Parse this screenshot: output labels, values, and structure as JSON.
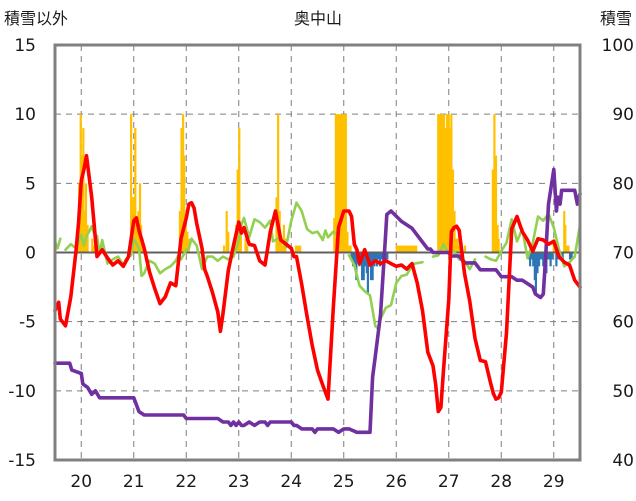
{
  "chart_data": {
    "type": "line",
    "title": "奥中山",
    "ylabel_left": "積雪以外",
    "ylabel_right": "積雪",
    "xlim": [
      19.5,
      29.5
    ],
    "ylim_left": [
      -15,
      15
    ],
    "ylim_right": [
      40,
      100
    ],
    "x_ticks": [
      "20",
      "21",
      "22",
      "23",
      "24",
      "25",
      "26",
      "27",
      "28",
      "29"
    ],
    "y_ticks_left": [
      "15",
      "10",
      "5",
      "0",
      "-5",
      "-10",
      "-15"
    ],
    "y_ticks_right": [
      "100",
      "90",
      "80",
      "70",
      "60",
      "50",
      "40"
    ],
    "grid": true,
    "colors": {
      "temperature": "#ff0000",
      "snow_depth": "#7030a0",
      "green_series": "#92d050",
      "precip_positive": "#ffc000",
      "precip_negative": "#2e75b6",
      "frame": "#808080",
      "zero_line": "#606060"
    },
    "series": [
      {
        "key": "temperature",
        "axis": "left",
        "x": [
          19.5,
          19.57,
          19.6,
          19.7,
          19.8,
          19.9,
          19.95,
          20.0,
          20.05,
          20.1,
          20.2,
          20.3,
          20.4,
          20.5,
          20.6,
          20.7,
          20.8,
          20.9,
          21.0,
          21.05,
          21.1,
          21.2,
          21.3,
          21.4,
          21.5,
          21.6,
          21.7,
          21.8,
          21.9,
          22.0,
          22.05,
          22.1,
          22.15,
          22.2,
          22.3,
          22.35,
          22.4,
          22.5,
          22.6,
          22.65,
          22.7,
          22.8,
          22.9,
          23.0,
          23.05,
          23.1,
          23.2,
          23.3,
          23.4,
          23.5,
          23.6,
          23.7,
          23.8,
          23.9,
          24.0,
          24.05,
          24.1,
          24.2,
          24.3,
          24.4,
          24.5,
          24.6,
          24.7,
          24.8,
          24.9,
          25.0,
          25.05,
          25.1,
          25.15,
          25.2,
          25.25,
          25.3,
          25.35,
          25.4,
          25.5,
          25.6,
          25.7,
          25.8,
          25.9,
          26.0,
          26.1,
          26.2,
          26.3,
          26.4,
          26.5,
          26.6,
          26.7,
          26.75,
          26.8,
          26.85,
          26.9,
          27.0,
          27.05,
          27.1,
          27.15,
          27.2,
          27.3,
          27.4,
          27.5,
          27.6,
          27.7,
          27.8,
          27.85,
          27.9,
          27.95,
          28.0,
          28.1,
          28.2,
          28.3,
          28.4,
          28.5,
          28.6,
          28.7,
          28.8,
          28.9,
          29.0,
          29.1,
          29.2,
          29.3,
          29.4,
          29.5
        ],
        "y": [
          -4.2,
          -3.6,
          -4.8,
          -5.3,
          -3.2,
          0.1,
          2.2,
          5.2,
          6.0,
          7.0,
          4.0,
          -0.3,
          0.2,
          -0.4,
          -0.9,
          -0.6,
          -1.0,
          -0.3,
          2.3,
          2.5,
          1.6,
          0.3,
          -1.4,
          -2.6,
          -3.7,
          -3.2,
          -2.2,
          -2.4,
          1.0,
          2.5,
          3.5,
          3.6,
          3.2,
          2.1,
          0.3,
          -1.2,
          -1.7,
          -2.9,
          -4.3,
          -5.7,
          -4.4,
          -1.3,
          0.5,
          2.2,
          1.4,
          1.8,
          0.6,
          0.5,
          -0.6,
          -0.9,
          1.5,
          3.0,
          0.9,
          0.6,
          0.3,
          -0.3,
          -0.3,
          -2.3,
          -4.6,
          -6.7,
          -8.5,
          -9.6,
          -10.6,
          -4.0,
          1.8,
          3.0,
          3.0,
          3.0,
          2.6,
          0.6,
          0.2,
          -0.8,
          -0.3,
          0.2,
          -0.9,
          -0.6,
          -0.8,
          -0.6,
          -0.8,
          -1.0,
          -0.9,
          -1.2,
          -0.8,
          -2.2,
          -4.2,
          -7.2,
          -8.2,
          -9.5,
          -11.5,
          -11.2,
          -8.5,
          -3.4,
          1.5,
          1.8,
          1.9,
          1.6,
          -1.5,
          -3.5,
          -6.2,
          -7.8,
          -7.9,
          -9.5,
          -10.2,
          -10.6,
          -10.5,
          -10.1,
          -5.8,
          1.7,
          2.6,
          1.5,
          0.9,
          0.1,
          1.0,
          0.9,
          0.6,
          0.8,
          -0.3,
          -0.7,
          -0.9,
          -2.0,
          -2.5
        ]
      },
      {
        "key": "snow_depth",
        "axis": "right",
        "x": [
          19.5,
          19.78,
          19.82,
          20.0,
          20.03,
          20.12,
          20.2,
          20.27,
          20.35,
          20.5,
          21.0,
          21.05,
          21.1,
          21.2,
          21.5,
          21.95,
          22.0,
          22.05,
          22.6,
          22.7,
          22.8,
          22.85,
          22.9,
          22.95,
          23.0,
          23.05,
          23.1,
          23.2,
          23.3,
          23.4,
          23.5,
          23.55,
          23.6,
          24.0,
          24.05,
          24.1,
          24.2,
          24.4,
          24.45,
          24.5,
          24.8,
          24.9,
          25.0,
          25.1,
          25.25,
          25.3,
          25.4,
          25.5,
          25.55,
          25.6,
          25.7,
          25.8,
          25.82,
          25.9,
          26.1,
          26.3,
          26.5,
          26.6,
          26.65,
          26.7,
          27.0,
          27.05,
          27.2,
          27.3,
          27.5,
          27.6,
          27.9,
          28.0,
          28.2,
          28.3,
          28.4,
          28.5,
          28.6,
          28.65,
          28.75,
          28.8,
          28.85,
          28.9,
          29.0,
          29.05,
          29.08,
          29.12,
          29.15,
          29.2,
          29.3,
          29.4,
          29.45,
          29.5
        ],
        "y": [
          54.0,
          54.0,
          53.0,
          52.5,
          51.0,
          50.5,
          49.5,
          50.0,
          49.0,
          49.0,
          49.0,
          48.0,
          47.0,
          46.5,
          46.5,
          46.5,
          46.0,
          46.0,
          46.0,
          45.5,
          45.5,
          45.0,
          45.5,
          45.0,
          45.5,
          45.0,
          45.0,
          45.5,
          45.0,
          45.5,
          45.5,
          45.0,
          45.5,
          45.5,
          45.0,
          45.0,
          44.5,
          44.5,
          44.0,
          44.5,
          44.5,
          44.0,
          44.5,
          44.5,
          44.0,
          44.0,
          44.0,
          44.0,
          52.0,
          55.0,
          61.0,
          73.0,
          75.5,
          76.0,
          74.5,
          73.5,
          71.5,
          70.5,
          70.5,
          70.0,
          70.0,
          69.5,
          69.5,
          68.5,
          68.5,
          67.5,
          67.5,
          66.5,
          66.5,
          66.0,
          66.0,
          65.5,
          65.0,
          64.0,
          63.5,
          64.0,
          70.0,
          77.0,
          82.0,
          76.0,
          78.0,
          77.0,
          79.0,
          79.0,
          79.0,
          79.0,
          77.0,
          78.5
        ]
      },
      {
        "key": "green_series",
        "axis": "left",
        "x": [
          19.5,
          19.55,
          19.6,
          19.65,
          19.7,
          19.8,
          19.9,
          20.0,
          20.05,
          20.1,
          20.15,
          20.2,
          20.25,
          20.3,
          20.35,
          20.4,
          20.5,
          20.6,
          20.7,
          20.8,
          20.85,
          20.9,
          20.95,
          21.0,
          21.1,
          21.15,
          21.2,
          21.3,
          21.4,
          21.5,
          21.6,
          21.7,
          21.8,
          21.85,
          21.9,
          22.0,
          22.05,
          22.1,
          22.2,
          22.3,
          22.4,
          22.5,
          22.6,
          22.7,
          22.8,
          22.9,
          23.0,
          23.05,
          23.1,
          23.2,
          23.3,
          23.4,
          23.5,
          23.6,
          23.65,
          23.7,
          23.8,
          23.9,
          24.0,
          24.1,
          24.2,
          24.3,
          24.4,
          24.5,
          24.6,
          24.65,
          24.7,
          24.8,
          24.9,
          25.0,
          25.1,
          25.2,
          25.3,
          25.4,
          25.5,
          25.6,
          25.65,
          25.7,
          25.8,
          25.9,
          26.0,
          26.1,
          26.2,
          26.3,
          26.35,
          26.5,
          26.6,
          26.7,
          26.8,
          26.9,
          27.0,
          27.1,
          27.2,
          27.3,
          27.4,
          27.5,
          27.6,
          27.7,
          27.8,
          27.9,
          28.0,
          28.1,
          28.2,
          28.3,
          28.4,
          28.5,
          28.6,
          28.7,
          28.8,
          28.9,
          29.0,
          29.1,
          29.2,
          29.3,
          29.4,
          29.5
        ],
        "y": [
          0.8,
          0.3,
          1.0,
          null,
          0.2,
          0.6,
          0.3,
          1.3,
          0.5,
          1.2,
          1.5,
          1.9,
          1.3,
          1.2,
          -0.1,
          0.9,
          -0.8,
          -0.5,
          -0.3,
          -0.9,
          -0.5,
          -0.3,
          -0.2,
          1.0,
          0.3,
          -1.7,
          -1.5,
          -0.6,
          -0.8,
          -1.5,
          -1.2,
          -1.0,
          -0.6,
          -0.2,
          -0.5,
          0.2,
          0.3,
          1.0,
          0.5,
          -1.2,
          -0.3,
          -0.3,
          -0.6,
          -0.3,
          -0.5,
          -0.3,
          0.9,
          2.0,
          2.5,
          1.1,
          2.4,
          2.2,
          1.8,
          2.3,
          0.8,
          0.9,
          1.1,
          0.4,
          2.3,
          3.6,
          3.0,
          1.7,
          1.4,
          1.5,
          0.9,
          1.6,
          1.1,
          1.5,
          1.2,
          null,
          -0.2,
          -0.9,
          -2.4,
          -2.8,
          -3.1,
          -5.3,
          -5.5,
          -4.8,
          -4.0,
          -3.8,
          -2.2,
          -1.7,
          -1.6,
          -1.0,
          -0.8,
          -0.7,
          null,
          -0.3,
          -0.2,
          0.6,
          -0.1,
          0.1,
          -0.5,
          -0.6,
          -1.2,
          -0.5,
          null,
          -0.3,
          -0.5,
          -0.6,
          0.1,
          0.7,
          2.4,
          0.8,
          1.7,
          -0.4,
          0.7,
          2.6,
          2.3,
          2.8,
          1.8,
          0.2,
          -1.0,
          -0.7,
          -0.3,
          2.0
        ]
      }
    ],
    "bars": {
      "axis": "left",
      "x": [
        19.96,
        19.99,
        20.02,
        20.04,
        20.07,
        20.09,
        20.12,
        20.21,
        20.24,
        20.26,
        20.95,
        20.98,
        21.01,
        21.03,
        21.06,
        21.09,
        21.12,
        21.14,
        21.17,
        21.88,
        21.91,
        21.94,
        21.96,
        21.99,
        22.02,
        22.05,
        22.72,
        22.77,
        22.8,
        22.92,
        22.95,
        22.98,
        23.01,
        23.04,
        23.13,
        23.16,
        23.72,
        23.75,
        23.78,
        23.81,
        23.84,
        23.86,
        23.89,
        24.09,
        24.12,
        24.15,
        24.17,
        24.82,
        24.85,
        24.88,
        24.9,
        24.93,
        24.96,
        24.99,
        25.02,
        25.04,
        25.07,
        25.1,
        25.13,
        25.15,
        25.18,
        25.21,
        25.24,
        25.27,
        25.3,
        25.32,
        25.35,
        25.38,
        25.41,
        25.44,
        25.46,
        25.49,
        25.52,
        25.55,
        25.58,
        25.61,
        25.63,
        25.66,
        25.69,
        25.72,
        25.75,
        25.77,
        25.8,
        25.83,
        26.01,
        26.04,
        26.07,
        26.1,
        26.13,
        26.16,
        26.18,
        26.21,
        26.24,
        26.27,
        26.29,
        26.32,
        26.35,
        26.38,
        26.8,
        26.83,
        26.86,
        26.89,
        26.91,
        26.94,
        26.97,
        27.0,
        27.03,
        27.05,
        27.08,
        27.11,
        27.14,
        27.17,
        27.2,
        27.31,
        27.84,
        27.87,
        27.9,
        27.93,
        27.95,
        28.52,
        28.55,
        28.58,
        28.61,
        28.64,
        28.66,
        28.69,
        28.72,
        28.74,
        28.77,
        28.8,
        28.83,
        28.86,
        28.89,
        28.91,
        28.94,
        28.97,
        29.0,
        29.02,
        29.05,
        29.08,
        29.11,
        29.14,
        29.17,
        29.2,
        29.22,
        29.25,
        29.28,
        29.31,
        29.34
      ],
      "y": [
        5.0,
        10.0,
        7.0,
        9.0,
        3.0,
        5.0,
        2.0,
        1.0,
        0.5,
        0.5,
        10.0,
        4.0,
        4.0,
        9.0,
        2.0,
        3.0,
        5.0,
        2.0,
        1.0,
        3.0,
        9.0,
        10.0,
        7.0,
        2.0,
        1.5,
        1.0,
        0.5,
        3.0,
        1.5,
        1.0,
        2.0,
        6.0,
        9.0,
        2.0,
        1.0,
        0.5,
        4.0,
        10.0,
        3.0,
        1.0,
        0.5,
        2.0,
        1.0,
        0.5,
        0.5,
        0.5,
        0.5,
        2.5,
        10.0,
        10.0,
        10.0,
        10.0,
        10.0,
        10.0,
        10.0,
        10.0,
        1.5,
        0.5,
        0.5,
        -0.5,
        -1.0,
        -1.0,
        -2.0,
        -0.5,
        -1.0,
        -0.5,
        -2.0,
        -2.0,
        -1.0,
        -1.5,
        -3.0,
        -1.0,
        -2.0,
        -2.0,
        -1.0,
        -0.5,
        -1.0,
        -0.5,
        -1.0,
        -0.5,
        -0.5,
        -1.0,
        -0.5,
        -0.5,
        0.5,
        0.5,
        0.5,
        0.5,
        0.5,
        0.5,
        0.5,
        0.5,
        0.5,
        0.5,
        0.5,
        0.5,
        0.5,
        0.5,
        10.0,
        10.0,
        10.0,
        10.0,
        10.0,
        9.0,
        10.0,
        10.0,
        9.0,
        10.0,
        6.0,
        3.0,
        1.0,
        1.0,
        0.5,
        0.5,
        6.0,
        10.0,
        7.0,
        2.0,
        1.0,
        -0.5,
        -1.0,
        -0.5,
        -1.0,
        -2.0,
        -3.0,
        -1.5,
        -1.0,
        -0.5,
        -0.5,
        -1.0,
        -0.5,
        -1.5,
        -0.5,
        -0.5,
        -1.0,
        -0.5,
        1.0,
        0.5,
        -1.0,
        -0.5,
        -0.5,
        -0.5,
        -0.5,
        3.0,
        2.0,
        0.5,
        0.5,
        -0.5,
        -0.5
      ]
    }
  }
}
